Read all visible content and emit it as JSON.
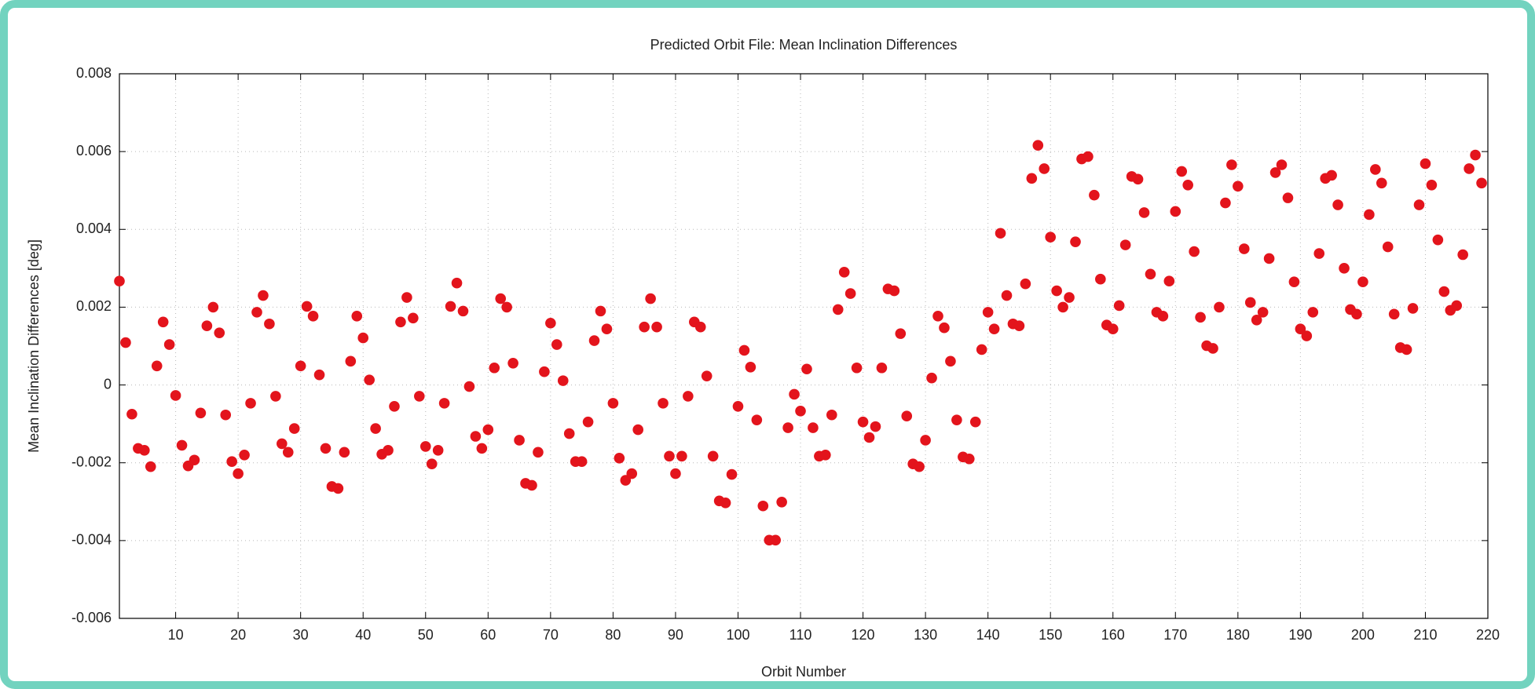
{
  "chart_data": {
    "type": "scatter",
    "title": "Predicted Orbit File: Mean Inclination Differences",
    "x_label": "Orbit Number",
    "y_label": "Mean Inclination Differences [deg]",
    "color": "#e3141c",
    "grid": true,
    "xlim": [
      1,
      220
    ],
    "ylim": [
      -0.006,
      0.008
    ],
    "xticks": [
      10,
      20,
      30,
      40,
      50,
      60,
      70,
      80,
      90,
      100,
      110,
      120,
      130,
      140,
      150,
      160,
      170,
      180,
      190,
      200,
      210,
      220
    ],
    "yticks": [
      -0.006,
      -0.004,
      -0.002,
      0,
      0.002,
      0.004,
      0.006,
      0.008
    ],
    "x": [
      1,
      2,
      3,
      4,
      5,
      6,
      7,
      8,
      9,
      10,
      11,
      12,
      13,
      14,
      15,
      16,
      17,
      18,
      19,
      20,
      21,
      22,
      23,
      24,
      25,
      26,
      27,
      28,
      29,
      30,
      31,
      32,
      33,
      34,
      35,
      36,
      37,
      38,
      39,
      40,
      41,
      42,
      43,
      44,
      45,
      46,
      47,
      48,
      49,
      50,
      51,
      52,
      53,
      54,
      55,
      56,
      57,
      58,
      59,
      60,
      61,
      62,
      63,
      64,
      65,
      66,
      67,
      68,
      69,
      70,
      71,
      72,
      73,
      74,
      75,
      76,
      77,
      78,
      79,
      80,
      81,
      82,
      83,
      84,
      85,
      86,
      87,
      88,
      89,
      90,
      91,
      92,
      93,
      94,
      95,
      96,
      97,
      98,
      99,
      100,
      101,
      102,
      103,
      104,
      105,
      106,
      107,
      108,
      109,
      110,
      111,
      112,
      113,
      114,
      115,
      116,
      117,
      118,
      119,
      120,
      121,
      122,
      123,
      124,
      125,
      126,
      127,
      128,
      129,
      130,
      131,
      132,
      133,
      134,
      135,
      136,
      137,
      138,
      139,
      140,
      141,
      142,
      143,
      144,
      145,
      146,
      147,
      148,
      149,
      150,
      151,
      152,
      153,
      154,
      155,
      156,
      157,
      158,
      159,
      160,
      161,
      162,
      163,
      164,
      165,
      166,
      167,
      168,
      169,
      170,
      171,
      172,
      173,
      174,
      175,
      176,
      177,
      178,
      179,
      180,
      181,
      182,
      183,
      184,
      185,
      186,
      187,
      188,
      189,
      190,
      191,
      192,
      193,
      194,
      195,
      196,
      197,
      198,
      199,
      200,
      201,
      202,
      203,
      204,
      205,
      206,
      207,
      208,
      209,
      210,
      211,
      212,
      213,
      214,
      215,
      216,
      217,
      218,
      219
    ],
    "values": [
      0.00267,
      0.00109,
      -0.00075,
      -0.00163,
      -0.00168,
      -0.0021,
      0.00049,
      0.00162,
      0.00104,
      -0.00027,
      -0.00155,
      -0.00208,
      -0.00193,
      -0.00072,
      0.00152,
      0.002,
      0.00134,
      -0.00077,
      -0.00197,
      -0.00228,
      -0.0018,
      -0.00047,
      0.00187,
      0.0023,
      0.00157,
      -0.00029,
      -0.00151,
      -0.00173,
      -0.00112,
      0.00049,
      0.00202,
      0.00177,
      0.00026,
      -0.00163,
      -0.00261,
      -0.00266,
      -0.00173,
      0.00061,
      0.00177,
      0.00121,
      0.00013,
      -0.00112,
      -0.00178,
      -0.00168,
      -0.00055,
      0.00162,
      0.00225,
      0.00172,
      -0.00029,
      -0.00158,
      -0.00203,
      -0.00168,
      -0.00047,
      0.00202,
      0.00262,
      0.0019,
      -4e-05,
      -0.00132,
      -0.00163,
      -0.00115,
      0.00044,
      0.00222,
      0.002,
      0.00056,
      -0.00142,
      -0.00253,
      -0.00258,
      -0.00173,
      0.00034,
      0.00159,
      0.00104,
      0.00011,
      -0.00125,
      -0.00197,
      -0.00197,
      -0.00095,
      0.00114,
      0.0019,
      0.00144,
      -0.00047,
      -0.00188,
      -0.00245,
      -0.00228,
      -0.00115,
      0.00149,
      0.00222,
      0.00149,
      -0.00047,
      -0.00183,
      -0.00228,
      -0.00183,
      -0.00029,
      0.00162,
      0.00149,
      0.00023,
      -0.00183,
      -0.00298,
      -0.00303,
      -0.0023,
      -0.00055,
      0.00089,
      0.00046,
      -0.0009,
      -0.00311,
      -0.00399,
      -0.00399,
      -0.00301,
      -0.0011,
      -0.00024,
      -0.00067,
      0.00041,
      -0.0011,
      -0.00183,
      -0.0018,
      -0.00077,
      0.00194,
      0.0029,
      0.00235,
      0.00044,
      -0.00095,
      -0.00135,
      -0.00107,
      0.00044,
      0.00247,
      0.00242,
      0.00132,
      -0.0008,
      -0.00203,
      -0.0021,
      -0.00142,
      0.00018,
      0.00177,
      0.00147,
      0.00061,
      -0.0009,
      -0.00185,
      -0.0019,
      -0.00095,
      0.00091,
      0.00187,
      0.00144,
      0.0039,
      0.0023,
      0.00157,
      0.00152,
      0.0026,
      0.00531,
      0.00616,
      0.00556,
      0.0038,
      0.00242,
      0.002,
      0.00225,
      0.00368,
      0.00581,
      0.00587,
      0.00488,
      0.00272,
      0.00154,
      0.00144,
      0.00204,
      0.0036,
      0.00536,
      0.00529,
      0.00443,
      0.00285,
      0.00187,
      0.00177,
      0.00267,
      0.00446,
      0.00549,
      0.00514,
      0.00343,
      0.00174,
      0.00101,
      0.00094,
      0.002,
      0.00468,
      0.00566,
      0.00511,
      0.0035,
      0.00212,
      0.00167,
      0.00187,
      0.00325,
      0.00546,
      0.00566,
      0.00481,
      0.00265,
      0.00144,
      0.00126,
      0.00187,
      0.00338,
      0.00531,
      0.00539,
      0.00463,
      0.003,
      0.00194,
      0.00182,
      0.00265,
      0.00438,
      0.00554,
      0.00519,
      0.00355,
      0.00182,
      0.00096,
      0.00091,
      0.00197,
      0.00463,
      0.00569,
      0.00514,
      0.00373,
      0.0024,
      0.00192,
      0.00204,
      0.00335,
      0.00556,
      0.00591,
      0.00519
    ]
  }
}
